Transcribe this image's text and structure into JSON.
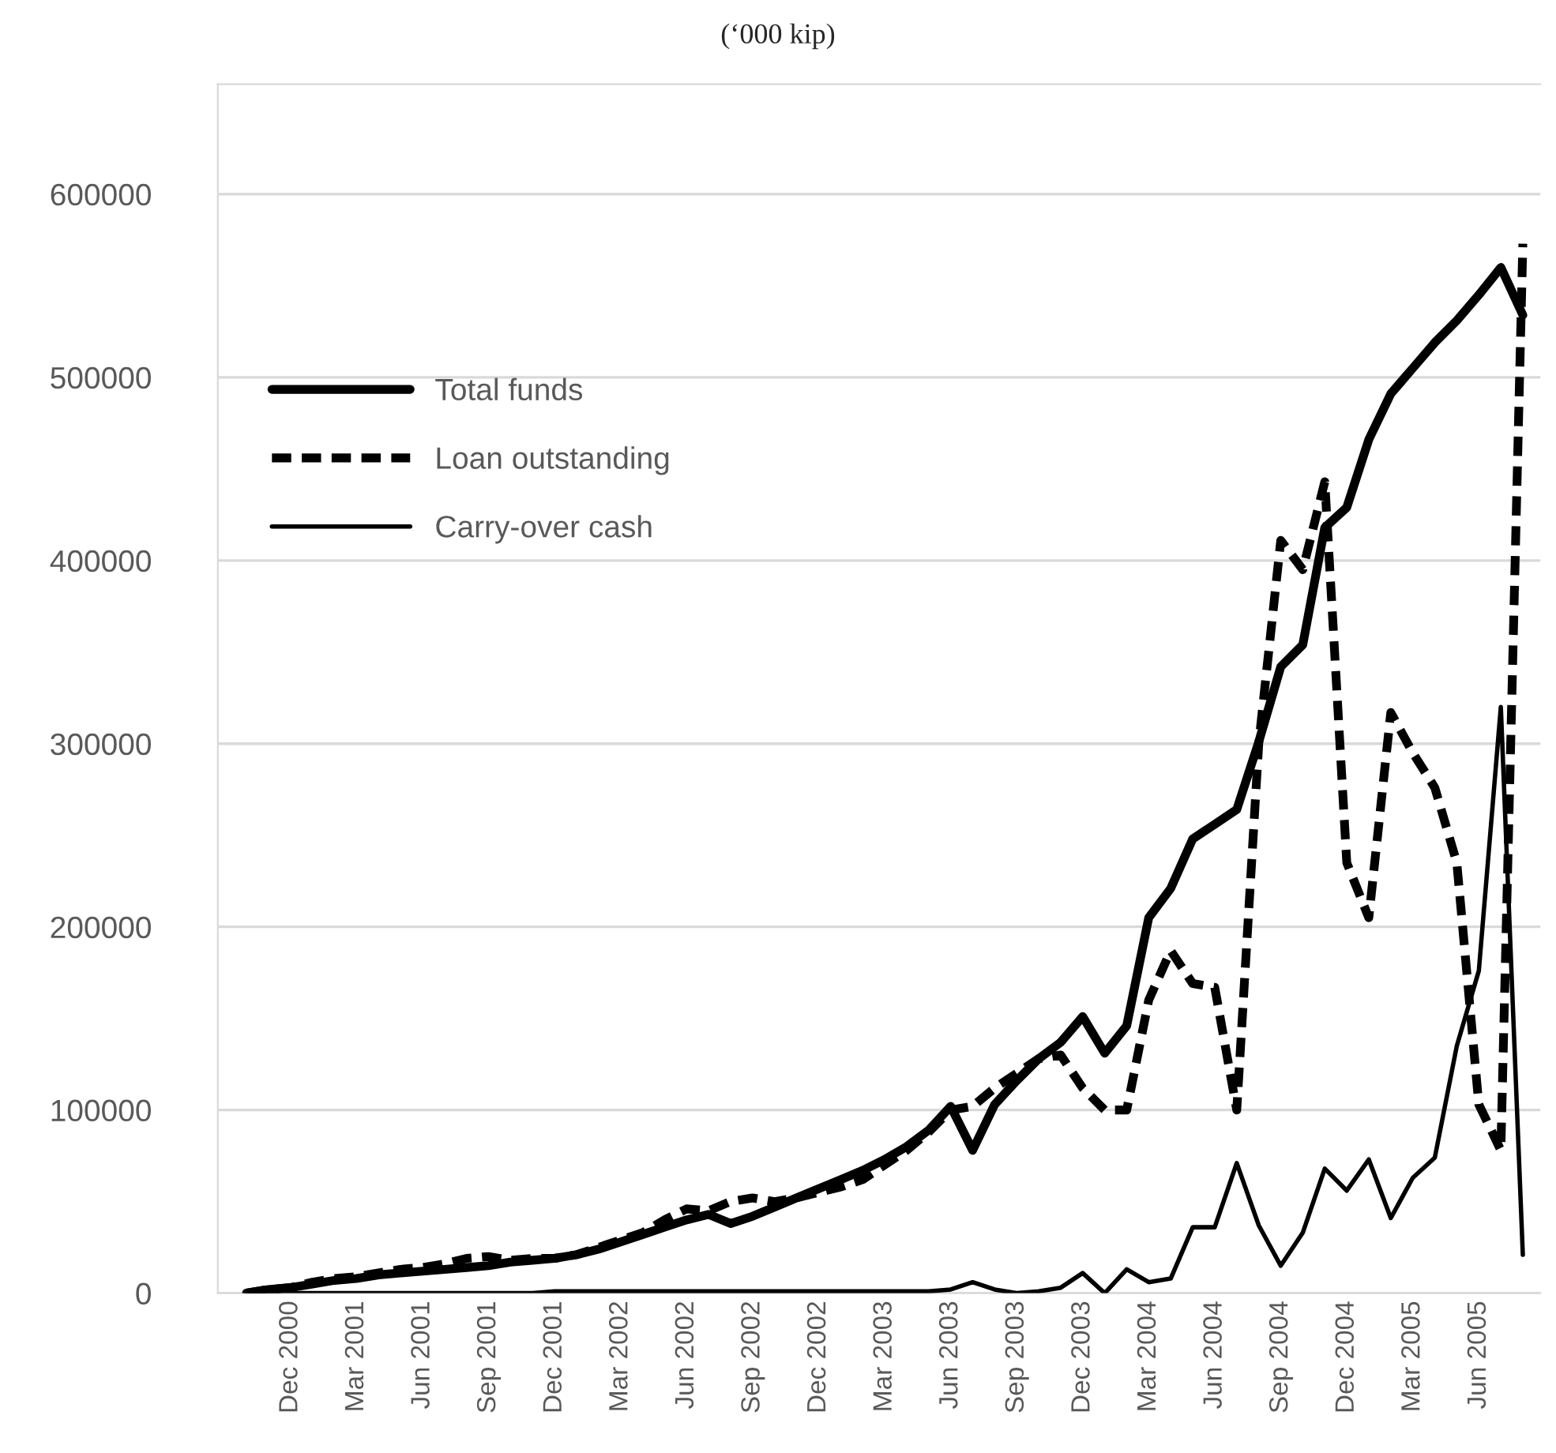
{
  "chart_data": {
    "type": "line",
    "title": "(‘000 kip)",
    "categories": [
      null,
      null,
      "Dec 2000",
      null,
      null,
      "Mar 2001",
      null,
      null,
      "Jun 2001",
      null,
      null,
      "Sep 2001",
      null,
      null,
      "Dec 2001",
      null,
      null,
      "Mar 2002",
      null,
      null,
      "Jun 2002",
      null,
      null,
      "Sep 2002",
      null,
      null,
      "Dec 2002",
      null,
      null,
      "Mar 2003",
      null,
      null,
      "Jun 2003",
      null,
      null,
      "Sep 2003",
      null,
      null,
      "Dec 2003",
      null,
      null,
      "Mar 2004",
      null,
      null,
      "Jun 2004",
      null,
      null,
      "Sep 2004",
      null,
      null,
      "Dec 2004",
      null,
      null,
      "Mar 2005",
      null,
      null,
      "Jun 2005",
      null,
      null
    ],
    "series": [
      {
        "name": "Total funds",
        "color": "#000000",
        "line_style": "solid",
        "values": [
          0,
          2000,
          3000,
          5000,
          7000,
          8000,
          10000,
          11000,
          12000,
          13000,
          14000,
          15000,
          17000,
          18000,
          19000,
          21000,
          24000,
          28000,
          32000,
          36000,
          40000,
          43000,
          38000,
          42000,
          47000,
          52000,
          57000,
          62000,
          67000,
          73000,
          80000,
          89000,
          102000,
          78000,
          103000,
          116000,
          128000,
          137000,
          151000,
          131000,
          146000,
          205000,
          221000,
          248000,
          256000,
          264000,
          301000,
          342000,
          354000,
          418000,
          429000,
          466000,
          491000,
          505000,
          519000,
          531000,
          545000,
          560000,
          534000
        ]
      },
      {
        "name": "Loan outstanding",
        "color": "#000000",
        "line_style": "dashed",
        "values": [
          0,
          2000,
          3000,
          6000,
          8000,
          9000,
          11000,
          13000,
          14000,
          16000,
          19000,
          20000,
          18000,
          19000,
          19000,
          21000,
          25000,
          29000,
          33000,
          40000,
          46000,
          45000,
          50000,
          52000,
          50000,
          52000,
          55000,
          58000,
          62000,
          70000,
          78000,
          88000,
          100000,
          102000,
          112000,
          120000,
          128000,
          130000,
          112000,
          100000,
          100000,
          160000,
          187000,
          169000,
          167000,
          100000,
          300000,
          411000,
          395000,
          443000,
          235000,
          205000,
          317000,
          295000,
          276000,
          235000,
          103000,
          78000,
          573000
        ]
      },
      {
        "name": "Carry-over cash",
        "color": "#000000",
        "line_style": "solid",
        "values": [
          0,
          0,
          0,
          0,
          0,
          0,
          0,
          0,
          0,
          0,
          0,
          0,
          0,
          0,
          1000,
          1000,
          1000,
          1000,
          1000,
          1000,
          1000,
          1000,
          1000,
          1000,
          1000,
          1000,
          1000,
          1000,
          1000,
          1000,
          1000,
          1000,
          2000,
          6000,
          2000,
          0,
          1000,
          3000,
          11000,
          0,
          13000,
          6000,
          8000,
          36000,
          36000,
          71000,
          37000,
          15000,
          33000,
          68000,
          56000,
          73000,
          41000,
          63000,
          74000,
          135000,
          176000,
          320000,
          21000
        ]
      }
    ],
    "ylim": [
      0,
      660000
    ],
    "yticks": [
      0,
      100000,
      200000,
      300000,
      400000,
      500000,
      600000
    ],
    "grid": "y",
    "legend": "top left",
    "marker": "none"
  }
}
